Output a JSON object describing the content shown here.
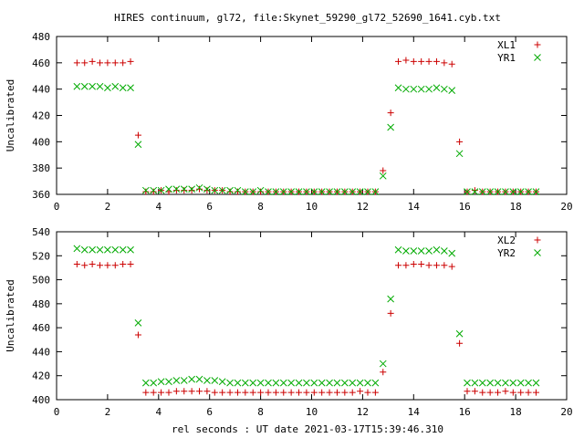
{
  "chart_data": {
    "title": "HIRES continuum, gl72, file:Skynet_59290_gl72_52690_1641.cyb.txt",
    "xlabel": "rel seconds : UT date 2021-03-17T15:39:46.310",
    "xlim": [
      0,
      20
    ],
    "xticks": [
      0,
      2,
      4,
      6,
      8,
      10,
      12,
      14,
      16,
      18,
      20
    ],
    "panels": [
      {
        "type": "scatter",
        "ylabel": "Uncalibrated",
        "ylim": [
          360,
          480
        ],
        "yticks": [
          360,
          380,
          400,
          420,
          440,
          460,
          480
        ],
        "legend_position": "top-right",
        "series": [
          {
            "name": "XL1",
            "marker": "plus",
            "color": "#cc0000",
            "x": [
              0.8,
              1.1,
              1.4,
              1.7,
              2.0,
              2.3,
              2.6,
              2.9,
              3.2,
              3.5,
              3.8,
              4.1,
              4.4,
              4.7,
              5.0,
              5.3,
              5.6,
              5.9,
              6.2,
              6.5,
              6.8,
              7.1,
              7.4,
              7.7,
              8.0,
              8.3,
              8.6,
              8.9,
              9.2,
              9.5,
              9.8,
              10.1,
              10.4,
              10.7,
              11.0,
              11.3,
              11.6,
              11.9,
              12.2,
              12.5,
              12.8,
              13.1,
              13.4,
              13.7,
              14.0,
              14.3,
              14.6,
              14.9,
              15.2,
              15.5,
              15.8,
              16.1,
              16.4,
              16.7,
              17.0,
              17.3,
              17.6,
              17.9,
              18.2,
              18.5,
              18.8
            ],
            "y": [
              460,
              460,
              461,
              460,
              460,
              460,
              460,
              461,
              405,
              362,
              362,
              363,
              362,
              363,
              363,
              363,
              364,
              363,
              363,
              363,
              362,
              362,
              362,
              362,
              362,
              362,
              362,
              362,
              362,
              362,
              362,
              362,
              362,
              362,
              362,
              362,
              362,
              362,
              362,
              362,
              378,
              422,
              461,
              462,
              461,
              461,
              461,
              461,
              460,
              459,
              400,
              362,
              363,
              362,
              362,
              362,
              362,
              362,
              362,
              362,
              362
            ]
          },
          {
            "name": "YR1",
            "marker": "cross",
            "color": "#00aa00",
            "x": [
              0.8,
              1.1,
              1.4,
              1.7,
              2.0,
              2.3,
              2.6,
              2.9,
              3.2,
              3.5,
              3.8,
              4.1,
              4.4,
              4.7,
              5.0,
              5.3,
              5.6,
              5.9,
              6.2,
              6.5,
              6.8,
              7.1,
              7.4,
              7.7,
              8.0,
              8.3,
              8.6,
              8.9,
              9.2,
              9.5,
              9.8,
              10.1,
              10.4,
              10.7,
              11.0,
              11.3,
              11.6,
              11.9,
              12.2,
              12.5,
              12.8,
              13.1,
              13.4,
              13.7,
              14.0,
              14.3,
              14.6,
              14.9,
              15.2,
              15.5,
              15.8,
              16.1,
              16.4,
              16.7,
              17.0,
              17.3,
              17.6,
              17.9,
              18.2,
              18.5,
              18.8
            ],
            "y": [
              442,
              442,
              442,
              442,
              441,
              442,
              441,
              441,
              398,
              363,
              363,
              363,
              364,
              364,
              364,
              364,
              365,
              364,
              363,
              363,
              363,
              363,
              362,
              362,
              363,
              362,
              362,
              362,
              362,
              362,
              362,
              362,
              362,
              362,
              362,
              362,
              362,
              362,
              362,
              362,
              374,
              411,
              441,
              440,
              440,
              440,
              440,
              441,
              440,
              439,
              391,
              362,
              362,
              362,
              362,
              362,
              362,
              362,
              362,
              362,
              362
            ]
          }
        ]
      },
      {
        "type": "scatter",
        "ylabel": "Uncalibrated",
        "ylim": [
          400,
          540
        ],
        "yticks": [
          400,
          420,
          440,
          460,
          480,
          500,
          520,
          540
        ],
        "legend_position": "top-right",
        "series": [
          {
            "name": "XL2",
            "marker": "plus",
            "color": "#cc0000",
            "x": [
              0.8,
              1.1,
              1.4,
              1.7,
              2.0,
              2.3,
              2.6,
              2.9,
              3.2,
              3.5,
              3.8,
              4.1,
              4.4,
              4.7,
              5.0,
              5.3,
              5.6,
              5.9,
              6.2,
              6.5,
              6.8,
              7.1,
              7.4,
              7.7,
              8.0,
              8.3,
              8.6,
              8.9,
              9.2,
              9.5,
              9.8,
              10.1,
              10.4,
              10.7,
              11.0,
              11.3,
              11.6,
              11.9,
              12.2,
              12.5,
              12.8,
              13.1,
              13.4,
              13.7,
              14.0,
              14.3,
              14.6,
              14.9,
              15.2,
              15.5,
              15.8,
              16.1,
              16.4,
              16.7,
              17.0,
              17.3,
              17.6,
              17.9,
              18.2,
              18.5,
              18.8
            ],
            "y": [
              513,
              512,
              513,
              512,
              512,
              512,
              513,
              513,
              454,
              406,
              406,
              406,
              406,
              407,
              407,
              407,
              407,
              407,
              406,
              406,
              406,
              406,
              406,
              406,
              406,
              406,
              406,
              406,
              406,
              406,
              406,
              406,
              406,
              406,
              406,
              406,
              406,
              407,
              406,
              406,
              423,
              472,
              512,
              512,
              513,
              513,
              512,
              512,
              512,
              511,
              447,
              407,
              407,
              406,
              406,
              406,
              407,
              406,
              406,
              406,
              406
            ]
          },
          {
            "name": "YR2",
            "marker": "cross",
            "color": "#00aa00",
            "x": [
              0.8,
              1.1,
              1.4,
              1.7,
              2.0,
              2.3,
              2.6,
              2.9,
              3.2,
              3.5,
              3.8,
              4.1,
              4.4,
              4.7,
              5.0,
              5.3,
              5.6,
              5.9,
              6.2,
              6.5,
              6.8,
              7.1,
              7.4,
              7.7,
              8.0,
              8.3,
              8.6,
              8.9,
              9.2,
              9.5,
              9.8,
              10.1,
              10.4,
              10.7,
              11.0,
              11.3,
              11.6,
              11.9,
              12.2,
              12.5,
              12.8,
              13.1,
              13.4,
              13.7,
              14.0,
              14.3,
              14.6,
              14.9,
              15.2,
              15.5,
              15.8,
              16.1,
              16.4,
              16.7,
              17.0,
              17.3,
              17.6,
              17.9,
              18.2,
              18.5,
              18.8
            ],
            "y": [
              526,
              525,
              525,
              525,
              525,
              525,
              525,
              525,
              464,
              414,
              414,
              415,
              415,
              416,
              416,
              417,
              417,
              416,
              416,
              415,
              414,
              414,
              414,
              414,
              414,
              414,
              414,
              414,
              414,
              414,
              414,
              414,
              414,
              414,
              414,
              414,
              414,
              414,
              414,
              414,
              430,
              484,
              525,
              524,
              524,
              524,
              524,
              525,
              524,
              522,
              455,
              414,
              414,
              414,
              414,
              414,
              414,
              414,
              414,
              414,
              414
            ]
          }
        ]
      }
    ]
  }
}
